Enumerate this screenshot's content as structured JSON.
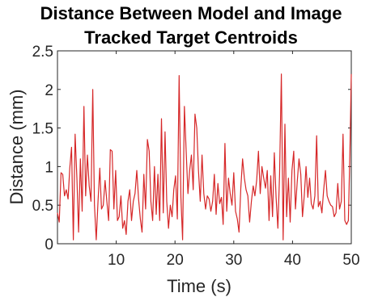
{
  "chart_data": {
    "type": "line",
    "title": [
      "Distance Between Model and Image",
      "Tracked Target Centroids"
    ],
    "xlabel": "Time (s)",
    "ylabel": "Distance (mm)",
    "xlim": [
      0,
      50
    ],
    "ylim": [
      0,
      2.5
    ],
    "xticks": [
      10,
      20,
      30,
      40,
      50
    ],
    "yticks": [
      0,
      0.5,
      1,
      1.5,
      2,
      2.5
    ],
    "xtick_labels": [
      "10",
      "20",
      "30",
      "40",
      "50"
    ],
    "ytick_labels": [
      "0",
      "0.5",
      "1",
      "1.5",
      "2",
      "2.5"
    ],
    "grid": false,
    "line_color": "#d62728",
    "axis_color": "#262626",
    "series": [
      {
        "values": [
          [
            0.0,
            0.4
          ],
          [
            0.3,
            0.28
          ],
          [
            0.6,
            0.92
          ],
          [
            0.9,
            0.9
          ],
          [
            1.2,
            0.62
          ],
          [
            1.5,
            0.7
          ],
          [
            1.8,
            0.58
          ],
          [
            2.1,
            0.98
          ],
          [
            2.4,
            1.25
          ],
          [
            2.7,
            0.05
          ],
          [
            3.0,
            1.42
          ],
          [
            3.3,
            0.85
          ],
          [
            3.6,
            0.15
          ],
          [
            3.9,
            1.1
          ],
          [
            4.2,
            0.42
          ],
          [
            4.5,
            1.78
          ],
          [
            4.8,
            0.62
          ],
          [
            5.1,
            1.15
          ],
          [
            5.4,
            0.75
          ],
          [
            5.7,
            0.55
          ],
          [
            6.0,
            2.0
          ],
          [
            6.3,
            0.5
          ],
          [
            6.6,
            0.05
          ],
          [
            6.9,
            0.55
          ],
          [
            7.2,
            0.98
          ],
          [
            7.5,
            0.45
          ],
          [
            7.8,
            0.5
          ],
          [
            8.1,
            0.82
          ],
          [
            8.4,
            0.55
          ],
          [
            8.7,
            0.3
          ],
          [
            9.0,
            1.22
          ],
          [
            9.3,
            1.2
          ],
          [
            9.6,
            0.45
          ],
          [
            9.9,
            0.95
          ],
          [
            10.2,
            0.3
          ],
          [
            10.5,
            0.35
          ],
          [
            10.8,
            0.62
          ],
          [
            11.1,
            0.2
          ],
          [
            11.4,
            0.3
          ],
          [
            11.7,
            0.12
          ],
          [
            12.0,
            0.55
          ],
          [
            12.3,
            0.7
          ],
          [
            12.6,
            0.3
          ],
          [
            12.9,
            0.55
          ],
          [
            13.2,
            0.65
          ],
          [
            13.5,
            0.95
          ],
          [
            13.8,
            0.58
          ],
          [
            14.1,
            0.32
          ],
          [
            14.4,
            0.15
          ],
          [
            14.7,
            0.9
          ],
          [
            15.0,
            0.45
          ],
          [
            15.3,
            1.35
          ],
          [
            15.6,
            1.2
          ],
          [
            15.9,
            0.55
          ],
          [
            16.2,
            0.3
          ],
          [
            16.5,
            1.0
          ],
          [
            16.8,
            0.38
          ],
          [
            17.1,
            0.9
          ],
          [
            17.4,
            0.3
          ],
          [
            17.7,
            1.62
          ],
          [
            18.0,
            0.4
          ],
          [
            18.3,
            1.45
          ],
          [
            18.6,
            0.55
          ],
          [
            18.9,
            0.2
          ],
          [
            19.2,
            0.5
          ],
          [
            19.5,
            0.35
          ],
          [
            19.8,
            0.7
          ],
          [
            20.1,
            0.88
          ],
          [
            20.4,
            0.32
          ],
          [
            20.7,
            2.18
          ],
          [
            21.0,
            0.6
          ],
          [
            21.3,
            0.05
          ],
          [
            21.6,
            1.78
          ],
          [
            21.9,
            1.2
          ],
          [
            22.2,
            0.65
          ],
          [
            22.5,
            0.95
          ],
          [
            22.8,
            1.15
          ],
          [
            23.1,
            0.7
          ],
          [
            23.4,
            1.68
          ],
          [
            23.7,
            1.5
          ],
          [
            24.0,
            0.95
          ],
          [
            24.3,
            0.55
          ],
          [
            24.6,
            1.15
          ],
          [
            24.9,
            0.65
          ],
          [
            25.2,
            0.45
          ],
          [
            25.5,
            0.62
          ],
          [
            25.8,
            0.58
          ],
          [
            26.1,
            0.42
          ],
          [
            26.4,
            0.55
          ],
          [
            26.7,
            0.9
          ],
          [
            27.0,
            0.38
          ],
          [
            27.3,
            0.78
          ],
          [
            27.6,
            0.52
          ],
          [
            27.9,
            0.6
          ],
          [
            28.2,
            0.25
          ],
          [
            28.5,
            1.3
          ],
          [
            28.8,
            0.42
          ],
          [
            29.1,
            0.85
          ],
          [
            29.4,
            0.65
          ],
          [
            29.7,
            0.5
          ],
          [
            30.0,
            0.92
          ],
          [
            30.3,
            0.42
          ],
          [
            30.6,
            0.32
          ],
          [
            30.9,
            0.15
          ],
          [
            31.2,
            0.72
          ],
          [
            31.5,
            1.1
          ],
          [
            31.8,
            0.85
          ],
          [
            32.1,
            0.7
          ],
          [
            32.4,
            0.62
          ],
          [
            32.7,
            0.28
          ],
          [
            33.0,
            0.55
          ],
          [
            33.3,
            0.75
          ],
          [
            33.6,
            0.62
          ],
          [
            33.9,
            0.82
          ],
          [
            34.2,
            1.2
          ],
          [
            34.5,
            0.65
          ],
          [
            34.8,
            1.0
          ],
          [
            35.1,
            0.85
          ],
          [
            35.4,
            0.72
          ],
          [
            35.7,
            0.95
          ],
          [
            36.0,
            0.3
          ],
          [
            36.3,
            0.88
          ],
          [
            36.6,
            0.35
          ],
          [
            36.9,
            1.18
          ],
          [
            37.2,
            0.6
          ],
          [
            37.5,
            0.2
          ],
          [
            37.8,
            0.9
          ],
          [
            38.1,
            2.2
          ],
          [
            38.4,
            0.05
          ],
          [
            38.7,
            1.55
          ],
          [
            39.0,
            0.35
          ],
          [
            39.3,
            0.85
          ],
          [
            39.6,
            0.28
          ],
          [
            39.9,
            0.95
          ],
          [
            40.2,
            1.2
          ],
          [
            40.5,
            0.45
          ],
          [
            40.8,
            0.8
          ],
          [
            41.1,
            1.1
          ],
          [
            41.4,
            0.9
          ],
          [
            41.7,
            0.35
          ],
          [
            42.0,
            0.62
          ],
          [
            42.3,
            1.0
          ],
          [
            42.6,
            0.6
          ],
          [
            42.9,
            0.85
          ],
          [
            43.2,
            0.52
          ],
          [
            43.5,
            0.45
          ],
          [
            43.8,
            0.62
          ],
          [
            44.1,
            1.4
          ],
          [
            44.4,
            0.48
          ],
          [
            44.7,
            0.55
          ],
          [
            45.0,
            0.4
          ],
          [
            45.3,
            0.7
          ],
          [
            45.6,
            0.95
          ],
          [
            45.9,
            0.62
          ],
          [
            46.2,
            0.55
          ],
          [
            46.5,
            0.5
          ],
          [
            46.8,
            0.48
          ],
          [
            47.1,
            0.35
          ],
          [
            47.4,
            0.4
          ],
          [
            47.7,
            0.78
          ],
          [
            48.0,
            0.45
          ],
          [
            48.3,
            0.55
          ],
          [
            48.6,
            1.42
          ],
          [
            48.9,
            0.3
          ],
          [
            49.2,
            0.25
          ],
          [
            49.5,
            0.3
          ],
          [
            49.8,
            1.3
          ],
          [
            50.0,
            2.2
          ]
        ]
      }
    ]
  }
}
